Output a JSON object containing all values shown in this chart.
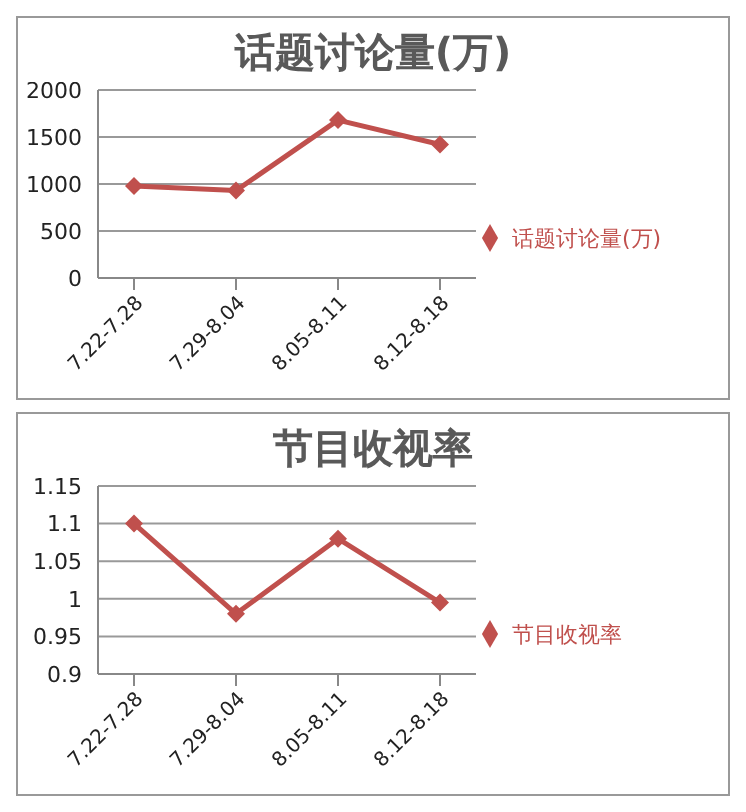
{
  "chart_data": [
    {
      "type": "line",
      "title": "话题讨论量(万)",
      "categories": [
        "7.22-7.28",
        "7.29-8.04",
        "8.05-8.11",
        "8.12-8.18"
      ],
      "series": [
        {
          "name": "话题讨论量(万)",
          "color": "#c0504d",
          "values": [
            980,
            930,
            1680,
            1420
          ]
        }
      ],
      "ylim": [
        0,
        2000
      ],
      "yticks": [
        0,
        500,
        1000,
        1500,
        2000
      ],
      "grid": "y",
      "legend": "right",
      "marker": "diamond"
    },
    {
      "type": "line",
      "title": "节目收视率",
      "categories": [
        "7.22-7.28",
        "7.29-8.04",
        "8.05-8.11",
        "8.12-8.18"
      ],
      "series": [
        {
          "name": "节目收视率",
          "color": "#c0504d",
          "values": [
            1.1,
            0.98,
            1.08,
            0.995
          ]
        }
      ],
      "ylim": [
        0.9,
        1.15
      ],
      "yticks": [
        0.9,
        0.95,
        1,
        1.05,
        1.1,
        1.15
      ],
      "grid": "y",
      "legend": "right",
      "marker": "diamond"
    }
  ]
}
